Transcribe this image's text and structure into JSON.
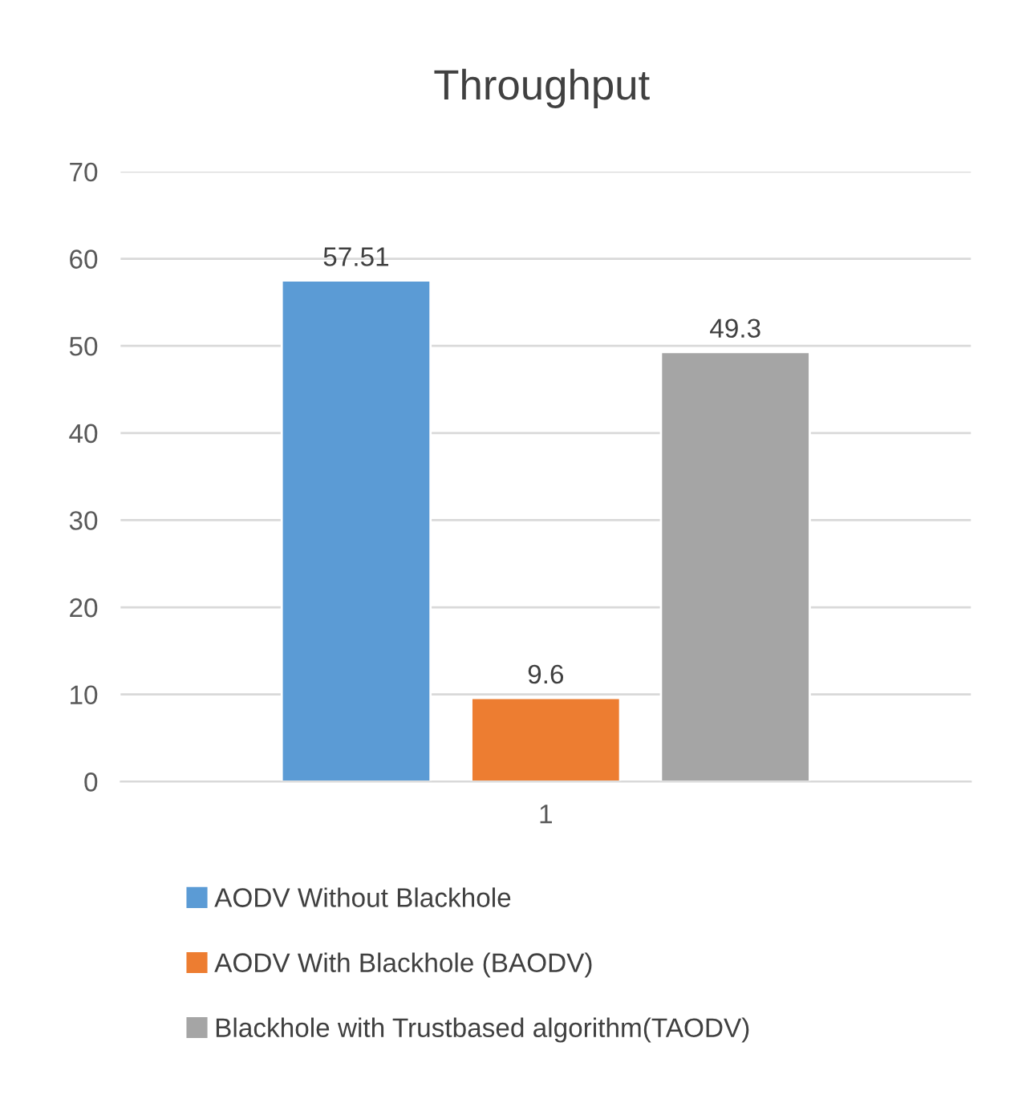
{
  "chart_data": {
    "type": "bar",
    "title": "Throughput",
    "categories": [
      "1"
    ],
    "series": [
      {
        "name": "AODV Without Blackhole",
        "color": "#5b9bd5",
        "values": [
          57.51
        ]
      },
      {
        "name": "AODV With Blackhole (BAODV)",
        "color": "#ed7d31",
        "values": [
          9.6
        ]
      },
      {
        "name": "Blackhole with Trustbased algorithm(TAODV)",
        "color": "#a5a5a5",
        "values": [
          49.3
        ]
      }
    ],
    "ylim": [
      0,
      70
    ],
    "yticks": [
      0,
      10,
      20,
      30,
      40,
      50,
      60,
      70
    ],
    "grid": "y",
    "legend": "bottom",
    "data_labels": true
  }
}
